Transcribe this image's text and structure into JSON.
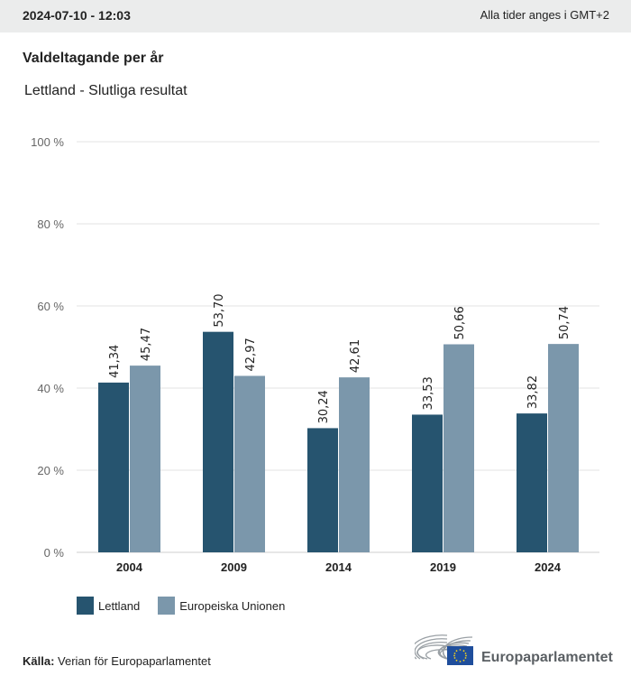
{
  "header": {
    "timestamp": "2024-07-10 - 12:03",
    "timezone_note": "Alla tider anges i GMT+2"
  },
  "title": "Valdeltagande per år",
  "subtitle": "Lettland - Slutliga resultat",
  "source": {
    "label": "Källa:",
    "text": "Verian för Europaparlamentet"
  },
  "logo": {
    "text": "Europaparlamentet",
    "icon": "european-parliament-logo-icon"
  },
  "colors": {
    "lettland": "#26546f",
    "eu": "#7b97ab",
    "grid": "#e3e3e3",
    "axis_text": "#666666"
  },
  "chart_data": {
    "type": "bar",
    "title": "Valdeltagande per år",
    "subtitle": "Lettland - Slutliga resultat",
    "categories": [
      "2004",
      "2009",
      "2014",
      "2019",
      "2024"
    ],
    "series": [
      {
        "name": "Lettland",
        "values": [
          41.34,
          53.7,
          30.24,
          33.53,
          33.82
        ],
        "labels": [
          "41,34",
          "53,70",
          "30,24",
          "33,53",
          "33,82"
        ]
      },
      {
        "name": "Europeiska Unionen",
        "values": [
          45.47,
          42.97,
          42.61,
          50.66,
          50.74
        ],
        "labels": [
          "45,47",
          "42,97",
          "42,61",
          "50,66",
          "50,74"
        ]
      }
    ],
    "xlabel": "",
    "ylabel": "",
    "ylim": [
      0,
      100
    ],
    "yticks": [
      0,
      20,
      40,
      60,
      80,
      100
    ],
    "ytick_labels": [
      "0 %",
      "20 %",
      "40 %",
      "60 %",
      "80 %",
      "100 %"
    ],
    "grid": true,
    "legend_position": "bottom-left"
  }
}
